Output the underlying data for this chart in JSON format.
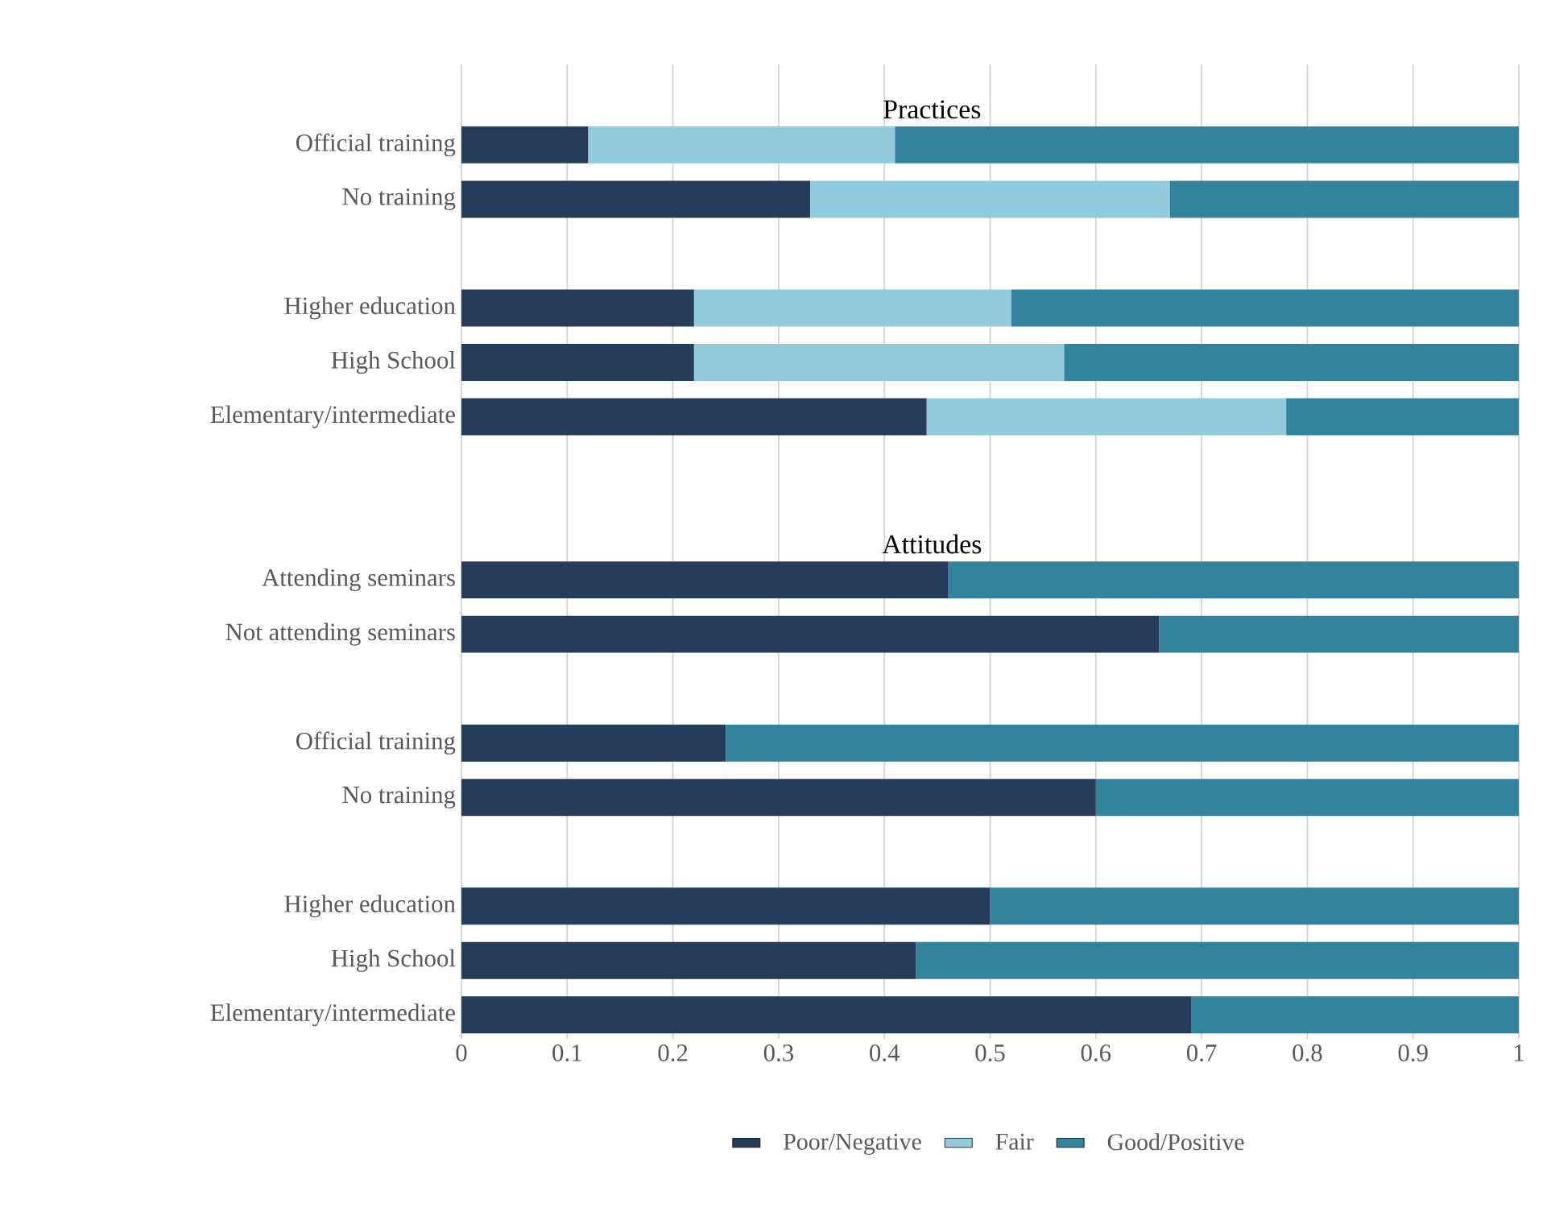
{
  "chart_data": {
    "type": "bar",
    "orientation": "horizontal",
    "stacked": true,
    "categories": [
      "Official training",
      "No training",
      null,
      "Higher education",
      "High School",
      "Elementary/intermediate",
      null,
      null,
      "Attending seminars",
      "Not attending seminars",
      null,
      "Official training",
      "No training",
      null,
      "Higher education",
      "High School",
      "Elementary/intermediate"
    ],
    "series": [
      {
        "name": "Poor/Negative",
        "color": "#253d5b",
        "values": [
          0.12,
          0.33,
          null,
          0.22,
          0.22,
          0.44,
          null,
          null,
          0.46,
          0.66,
          null,
          0.25,
          0.6,
          null,
          0.5,
          0.43,
          0.69
        ]
      },
      {
        "name": "Fair",
        "color": "#92cbdc",
        "values": [
          0.29,
          0.34,
          null,
          0.3,
          0.35,
          0.34,
          null,
          null,
          null,
          null,
          null,
          null,
          null,
          null,
          null,
          null,
          null
        ]
      },
      {
        "name": "Good/Positive",
        "color": "#31849b",
        "values": [
          0.59,
          0.33,
          null,
          0.48,
          0.43,
          0.22,
          null,
          null,
          0.54,
          0.34,
          null,
          0.75,
          0.4,
          null,
          0.5,
          0.57,
          0.31
        ]
      }
    ],
    "annotations": [
      "Practices",
      "Attitudes"
    ],
    "xlim": [
      0,
      1
    ],
    "xticks": [
      0,
      0.1,
      0.2,
      0.3,
      0.4,
      0.5,
      0.6,
      0.7,
      0.8,
      0.9,
      1
    ],
    "grid": "x",
    "legend": "bottom"
  }
}
